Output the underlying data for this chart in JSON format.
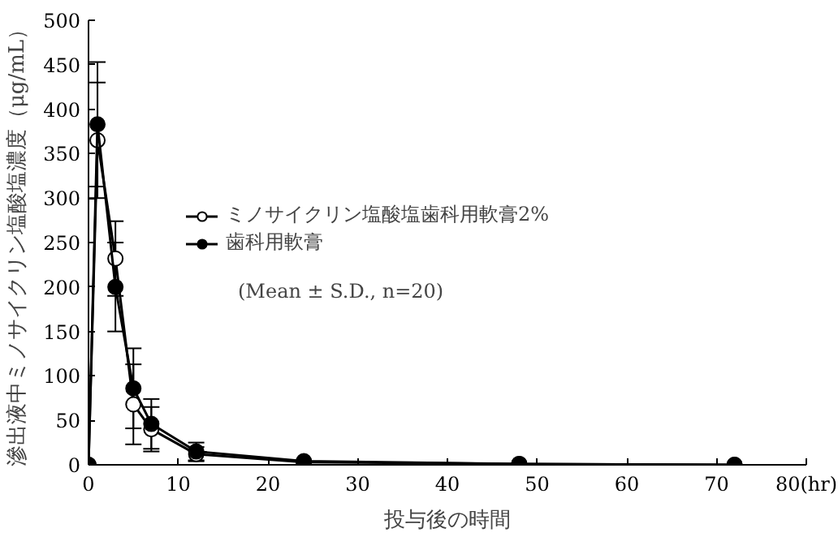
{
  "chart_data": {
    "type": "line",
    "xlabel": "投与後の時間",
    "ylabel": "滲出液中ミノサイクリン塩酸塩濃度（μg/mL）",
    "x": [
      0,
      1,
      3,
      5,
      7,
      12,
      24,
      48,
      72
    ],
    "series": [
      {
        "name": "ミノサイクリン塩酸塩歯科用軟膏2%",
        "color": "#ffffff",
        "values": [
          0,
          365,
          232,
          68,
          40,
          12,
          3,
          1,
          0
        ],
        "errors": [
          null,
          65,
          42,
          45,
          25,
          8,
          null,
          null,
          null
        ]
      },
      {
        "name": "歯科用軟膏",
        "color": "#000000",
        "values": [
          0,
          383,
          200,
          86,
          46,
          15,
          4,
          1,
          0
        ],
        "errors": [
          null,
          70,
          50,
          45,
          28,
          10,
          null,
          null,
          null
        ]
      }
    ],
    "xlim": [
      0,
      80
    ],
    "xticks": [
      0,
      10,
      20,
      30,
      40,
      50,
      60,
      70,
      {
        "value": 80,
        "label": "80(hr)"
      }
    ],
    "ylim": [
      0,
      500
    ],
    "yticks": [
      0,
      50,
      100,
      150,
      200,
      250,
      300,
      350,
      400,
      450,
      500
    ],
    "legend": "top",
    "marker": "circle",
    "line_style": "solid",
    "grid": false,
    "annotations": [
      "(Mean ± S.D., n=20)"
    ]
  }
}
